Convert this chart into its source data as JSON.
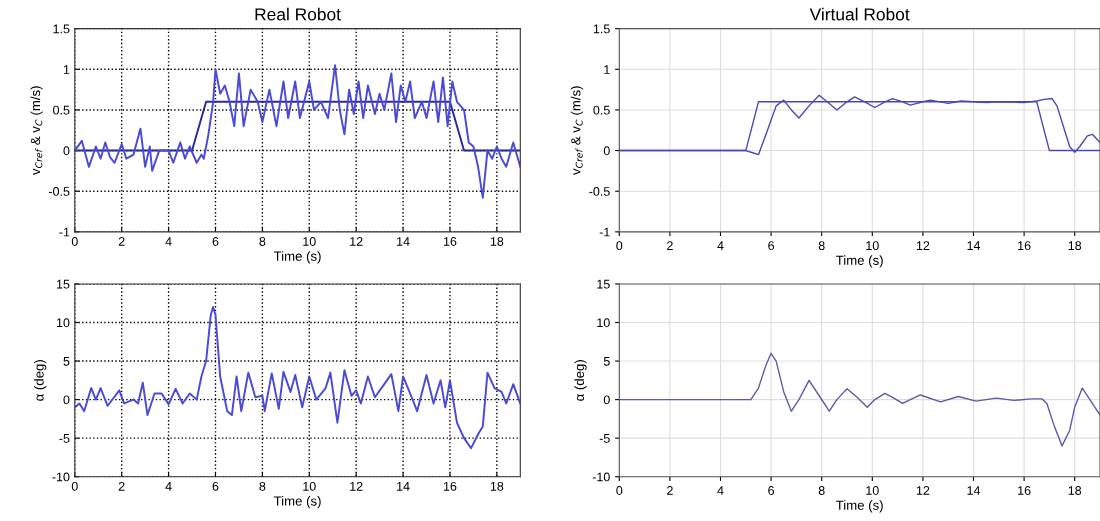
{
  "chart_data": [
    {
      "type": "line",
      "title": "Real Robot",
      "xlabel": "Time (s)",
      "ylabel": "v$_{Cref}$ & v$_{C}$ (m/s)",
      "xlim": [
        0,
        19
      ],
      "ylim": [
        -1,
        1.5
      ],
      "xticks": [
        0,
        2,
        4,
        6,
        8,
        10,
        12,
        14,
        16,
        18
      ],
      "yticks": [
        -1,
        -0.5,
        0,
        0.5,
        1,
        1.5
      ],
      "grid": true,
      "series": [
        {
          "color": "#2a2a9a",
          "x": [
            0,
            5,
            5.6,
            16,
            16.6,
            19
          ],
          "values": [
            0,
            0,
            0.6,
            0.6,
            0,
            0
          ]
        },
        {
          "color": "#4a4ad8",
          "x": [
            0,
            0.3,
            0.6,
            0.9,
            1.1,
            1.3,
            1.5,
            1.7,
            2.0,
            2.2,
            2.5,
            2.8,
            3.0,
            3.2,
            3.3,
            3.6,
            4.0,
            4.2,
            4.5,
            4.7,
            4.9,
            5.2,
            5.4,
            5.5,
            5.7,
            5.9,
            6.0,
            6.2,
            6.4,
            6.6,
            6.8,
            7.0,
            7.2,
            7.5,
            7.8,
            8.0,
            8.3,
            8.6,
            8.9,
            9.1,
            9.4,
            9.6,
            10.0,
            10.2,
            10.5,
            10.8,
            11.1,
            11.3,
            11.5,
            11.7,
            11.9,
            12.1,
            12.3,
            12.5,
            12.8,
            13.0,
            13.2,
            13.5,
            13.7,
            13.9,
            14.1,
            14.3,
            14.5,
            14.8,
            15.0,
            15.3,
            15.5,
            15.7,
            15.9,
            16.1,
            16.3,
            16.6,
            16.8,
            17.0,
            17.2,
            17.4,
            17.6,
            17.8,
            18.0,
            18.2,
            18.4,
            18.7,
            19.0
          ],
          "values": [
            0,
            0.12,
            -0.2,
            0.05,
            -0.1,
            0.1,
            -0.08,
            -0.15,
            0.08,
            -0.1,
            -0.05,
            0.27,
            -0.2,
            0.05,
            -0.25,
            0,
            0,
            -0.15,
            0.1,
            -0.1,
            0.05,
            -0.15,
            -0.05,
            -0.1,
            0.2,
            0.6,
            1.0,
            0.7,
            0.8,
            0.6,
            0.3,
            0.95,
            0.3,
            0.75,
            0.6,
            0.35,
            0.75,
            0.3,
            0.85,
            0.4,
            0.85,
            0.4,
            0.85,
            0.5,
            0.6,
            0.4,
            1.05,
            0.5,
            0.2,
            0.75,
            0.45,
            0.85,
            0.4,
            0.8,
            0.45,
            0.7,
            0.5,
            0.95,
            0.35,
            0.8,
            0.6,
            0.85,
            0.4,
            0.6,
            0.4,
            0.85,
            0.35,
            0.9,
            0.3,
            0.85,
            0.6,
            0.5,
            0.1,
            0.05,
            -0.2,
            -0.58,
            0,
            -0.1,
            0.05,
            -0.1,
            -0.2,
            0.1,
            -0.2
          ]
        }
      ]
    },
    {
      "type": "line",
      "title": "Virtual Robot",
      "xlabel": "Time (s)",
      "ylabel": "v$_{Cref}$ & v$_{C}$ (m/s)",
      "xlim": [
        0,
        19
      ],
      "ylim": [
        -1,
        1.5
      ],
      "xticks": [
        0,
        2,
        4,
        6,
        8,
        10,
        12,
        14,
        16,
        18
      ],
      "yticks": [
        -1,
        -0.5,
        0,
        0.5,
        1,
        1.5
      ],
      "grid": true,
      "series": [
        {
          "color": "#4848b8",
          "x": [
            0,
            5,
            5.5,
            16.5,
            17,
            19
          ],
          "values": [
            0,
            0,
            0.6,
            0.6,
            0,
            0
          ]
        },
        {
          "color": "#4848b8",
          "x": [
            0,
            5.0,
            5.3,
            5.5,
            5.8,
            6.2,
            6.5,
            6.8,
            7.1,
            7.5,
            7.9,
            8.3,
            8.6,
            9.0,
            9.3,
            9.7,
            10.1,
            10.5,
            10.8,
            11.2,
            11.5,
            12.0,
            12.3,
            13.0,
            13.5,
            14.0,
            14.5,
            15.0,
            16.0,
            16.5,
            16.8,
            17.1,
            17.3,
            17.6,
            17.8,
            18.0,
            18.2,
            18.5,
            18.7,
            19.0
          ],
          "values": [
            0,
            0,
            -0.03,
            -0.05,
            0.2,
            0.55,
            0.62,
            0.5,
            0.4,
            0.55,
            0.68,
            0.58,
            0.5,
            0.6,
            0.66,
            0.6,
            0.53,
            0.6,
            0.64,
            0.6,
            0.56,
            0.6,
            0.62,
            0.58,
            0.61,
            0.6,
            0.59,
            0.6,
            0.59,
            0.61,
            0.63,
            0.64,
            0.55,
            0.25,
            0.05,
            -0.02,
            0.05,
            0.18,
            0.2,
            0.1
          ]
        }
      ]
    },
    {
      "type": "line",
      "xlabel": "Time (s)",
      "ylabel": "α (deg)",
      "xlim": [
        0,
        19
      ],
      "ylim": [
        -10,
        15
      ],
      "xticks": [
        0,
        2,
        4,
        6,
        8,
        10,
        12,
        14,
        16,
        18
      ],
      "yticks": [
        -10,
        -5,
        0,
        5,
        10,
        15
      ],
      "grid": true,
      "series": [
        {
          "color": "#4a4ad8",
          "x": [
            0,
            0.2,
            0.4,
            0.7,
            0.9,
            1.1,
            1.4,
            1.9,
            2.1,
            2.5,
            2.7,
            2.9,
            3.1,
            3.4,
            3.7,
            4.0,
            4.3,
            4.6,
            4.9,
            5.2,
            5.4,
            5.6,
            5.8,
            5.9,
            6.0,
            6.2,
            6.5,
            6.7,
            6.9,
            7.1,
            7.4,
            7.7,
            8.0,
            8.1,
            8.4,
            8.7,
            8.9,
            9.2,
            9.4,
            9.7,
            10.0,
            10.3,
            10.7,
            10.9,
            11.2,
            11.5,
            11.8,
            12.0,
            12.2,
            12.5,
            12.8,
            13.2,
            13.5,
            13.8,
            14.0,
            14.3,
            14.6,
            15.0,
            15.3,
            15.6,
            15.8,
            16.0,
            16.3,
            16.6,
            16.9,
            17.2,
            17.4,
            17.6,
            17.9,
            18.2,
            18.4,
            18.7,
            19.0
          ],
          "values": [
            -1,
            -0.5,
            -1.5,
            1.5,
            0,
            1.5,
            -0.8,
            1.2,
            -0.5,
            0,
            -0.5,
            2.2,
            -2.0,
            0.8,
            0.8,
            -0.6,
            1.4,
            -0.5,
            0.8,
            0,
            3,
            5,
            11,
            12,
            11,
            3,
            -1.5,
            -2,
            3,
            -1.5,
            3.5,
            0.3,
            0.5,
            -1.5,
            3.4,
            -1.2,
            3.6,
            1.0,
            3.2,
            -1,
            3.0,
            0,
            1.5,
            3.5,
            -3,
            3.8,
            0.5,
            1.2,
            -0.5,
            3.0,
            0.3,
            2,
            3.3,
            -1.5,
            3,
            0.8,
            -1.5,
            3.2,
            -0.5,
            2.5,
            -1,
            2.5,
            -3,
            -5,
            -6.3,
            -4.5,
            -3.5,
            3.5,
            1.5,
            1.0,
            -0.5,
            2.0,
            -0.5
          ]
        }
      ]
    },
    {
      "type": "line",
      "xlabel": "Time (s)",
      "ylabel": "α (deg)",
      "xlim": [
        0,
        19
      ],
      "ylim": [
        -10,
        15
      ],
      "xticks": [
        0,
        2,
        4,
        6,
        8,
        10,
        12,
        14,
        16,
        18
      ],
      "yticks": [
        -10,
        -5,
        0,
        5,
        10,
        15
      ],
      "grid": true,
      "series": [
        {
          "color": "#5a5aaa",
          "x": [
            0,
            5.2,
            5.5,
            5.8,
            6.0,
            6.2,
            6.5,
            6.8,
            7.1,
            7.5,
            7.9,
            8.3,
            8.6,
            9.0,
            9.4,
            9.8,
            10.1,
            10.5,
            10.8,
            11.2,
            11.5,
            11.9,
            12.7,
            13.4,
            14.1,
            14.9,
            15.6,
            16.3,
            16.7,
            16.9,
            17.2,
            17.5,
            17.8,
            18.0,
            18.3,
            18.6,
            19.0
          ],
          "values": [
            0,
            0,
            1.5,
            4.5,
            6,
            5,
            1.0,
            -1.5,
            0,
            2.5,
            0.5,
            -1.5,
            0,
            1.4,
            0.3,
            -1.0,
            0,
            0.8,
            0.3,
            -0.5,
            0,
            0.6,
            -0.3,
            0.4,
            -0.2,
            0.2,
            -0.1,
            0.1,
            0.1,
            -0.5,
            -3.5,
            -6,
            -4,
            -1,
            1.5,
            0,
            -2
          ]
        }
      ]
    }
  ]
}
